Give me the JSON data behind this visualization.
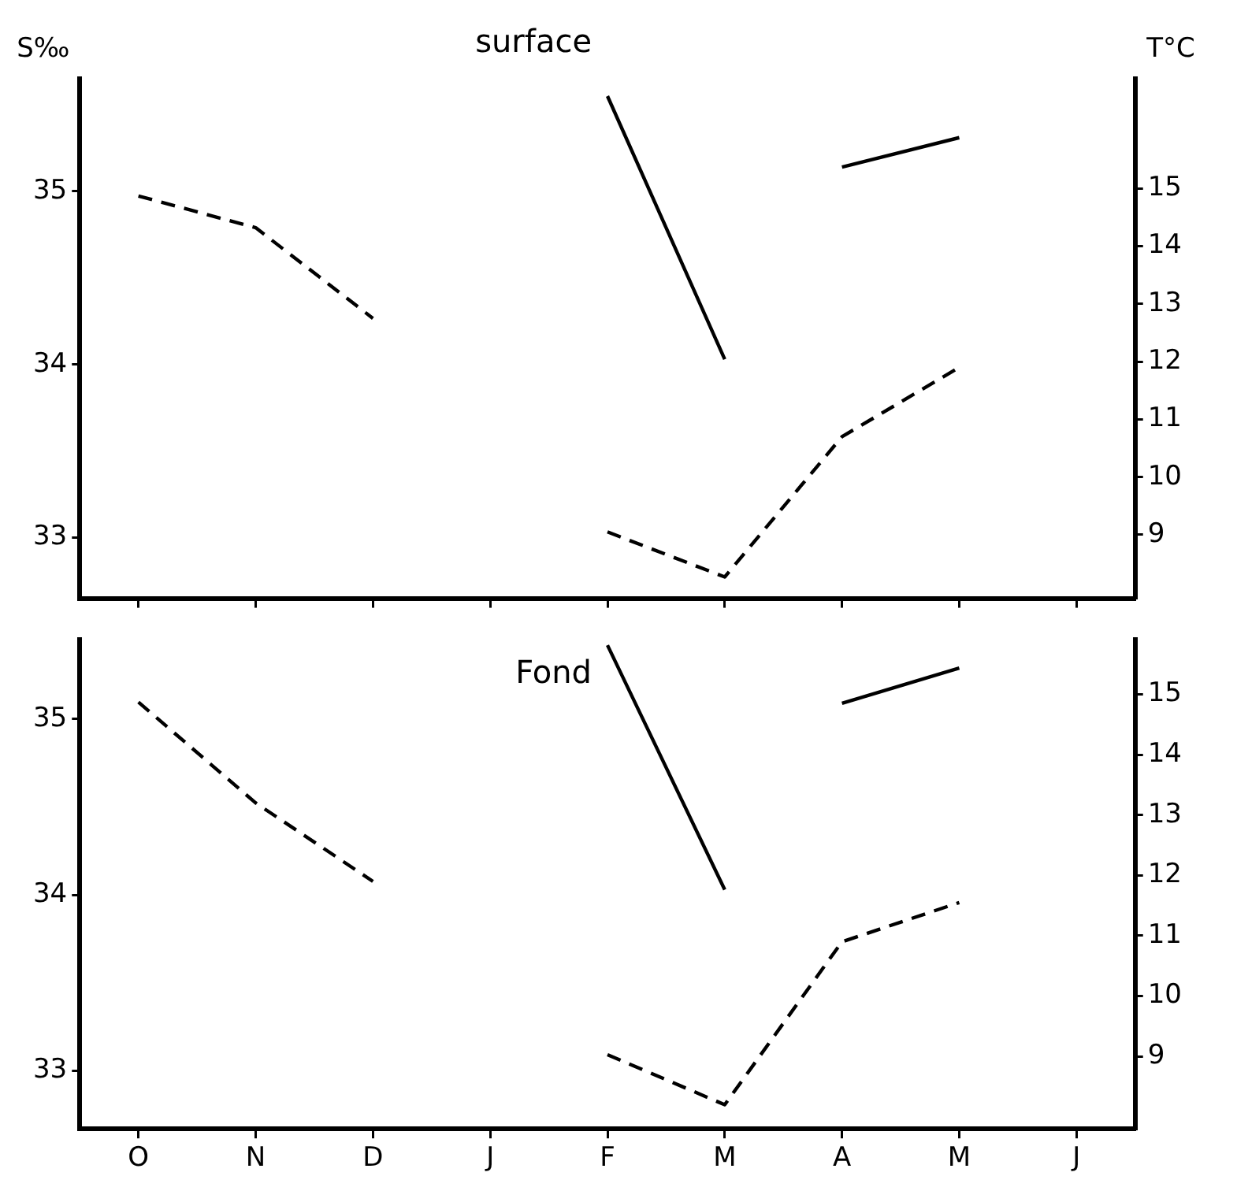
{
  "chart_data": [
    {
      "type": "line",
      "title": "surface",
      "ylabel": "S‰",
      "y2label": "T°C",
      "categories": [
        null,
        null,
        null,
        null,
        null,
        null,
        null,
        null,
        null
      ],
      "series": [
        {
          "color": "#000000",
          "line_style": "solid",
          "axis": "y",
          "values": [
            null,
            null,
            null,
            null,
            35.55,
            34.03,
            null,
            null,
            null
          ]
        },
        {
          "color": "#000000",
          "line_style": "solid",
          "axis": "y",
          "values": [
            null,
            null,
            null,
            null,
            null,
            null,
            35.14,
            35.31,
            null
          ]
        },
        {
          "color": "#000000",
          "line_style": "dashed",
          "axis": "y2",
          "values": [
            14.87,
            14.32,
            12.75,
            null,
            9.05,
            8.27,
            10.7,
            11.9,
            null
          ]
        }
      ],
      "ylim": [
        32.65,
        35.65
      ],
      "yticks": [
        33,
        34,
        35
      ],
      "y2lim": [
        7.9,
        16.9
      ],
      "y2ticks": [
        9,
        10,
        11,
        12,
        13,
        14,
        15
      ],
      "tick_labels": "y",
      "grid": false,
      "legend": false,
      "marker": "none"
    },
    {
      "type": "line",
      "title": "Fond",
      "categories": [
        "O",
        "N",
        "D",
        "J",
        "F",
        "M",
        "A",
        "M",
        "J"
      ],
      "series": [
        {
          "color": "#000000",
          "line_style": "solid",
          "axis": "y",
          "values": [
            null,
            null,
            null,
            null,
            35.42,
            34.03,
            null,
            null,
            null
          ]
        },
        {
          "color": "#000000",
          "line_style": "solid",
          "axis": "y",
          "values": [
            null,
            null,
            null,
            null,
            null,
            null,
            35.09,
            35.29,
            null
          ]
        },
        {
          "color": "#000000",
          "line_style": "dashed",
          "axis": "y2",
          "values": [
            14.87,
            13.2,
            11.9,
            null,
            9.03,
            8.2,
            10.9,
            11.55,
            null
          ]
        }
      ],
      "ylim": [
        32.67,
        35.45
      ],
      "yticks": [
        33,
        34,
        35
      ],
      "y2lim": [
        7.8,
        15.9
      ],
      "y2ticks": [
        9,
        10,
        11,
        12,
        13,
        14,
        15
      ],
      "grid": false,
      "legend": false,
      "marker": "none"
    }
  ]
}
